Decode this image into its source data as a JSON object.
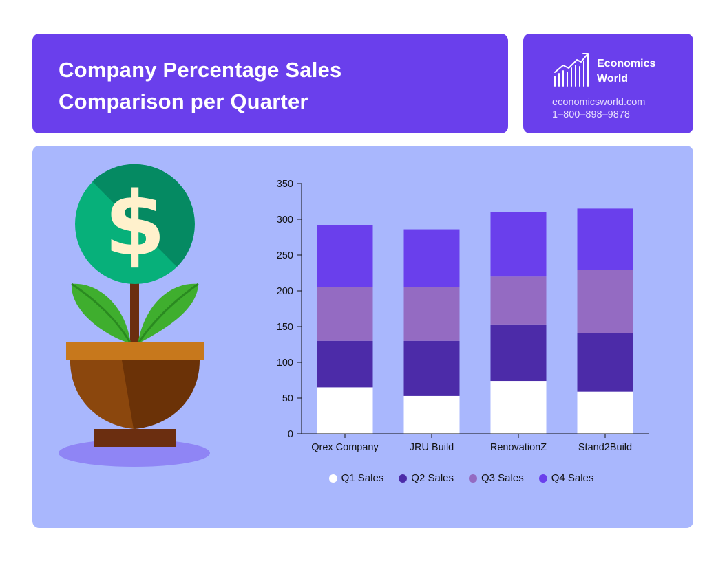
{
  "header": {
    "title_line1": "Company Percentage Sales",
    "title_line2": "Comparison per Quarter"
  },
  "brand": {
    "name_line1": "Economics",
    "name_line2": "World",
    "website": "economicsworld.com",
    "phone": "1–800–898–9878",
    "logo_icon": "bar-growth-chart-icon"
  },
  "illustration": {
    "icon": "money-plant-icon",
    "symbol": "$"
  },
  "colors": {
    "header_bg": "#6a3fec",
    "panel_bg": "#a9b7fd",
    "q1": "#ffffff",
    "q2": "#4c2ba8",
    "q3": "#946bc2",
    "q4": "#6a3fec"
  },
  "chart_data": {
    "type": "bar",
    "stacked": true,
    "title": "Company Percentage Sales Comparison per Quarter",
    "xlabel": "",
    "ylabel": "",
    "categories": [
      "Qrex Company",
      "JRU Build",
      "RenovationZ",
      "Stand2Build"
    ],
    "series": [
      {
        "name": "Q1 Sales",
        "color": "#ffffff",
        "values": [
          65,
          53,
          74,
          59
        ]
      },
      {
        "name": "Q2 Sales",
        "color": "#4c2ba8",
        "values": [
          65,
          77,
          79,
          82
        ]
      },
      {
        "name": "Q3 Sales",
        "color": "#946bc2",
        "values": [
          75,
          75,
          67,
          88
        ]
      },
      {
        "name": "Q4 Sales",
        "color": "#6a3fec",
        "values": [
          87,
          81,
          90,
          86
        ]
      }
    ],
    "ylim": [
      0,
      350
    ],
    "yticks": [
      0,
      50,
      100,
      150,
      200,
      250,
      300,
      350
    ],
    "grid": false,
    "legend_position": "bottom"
  }
}
